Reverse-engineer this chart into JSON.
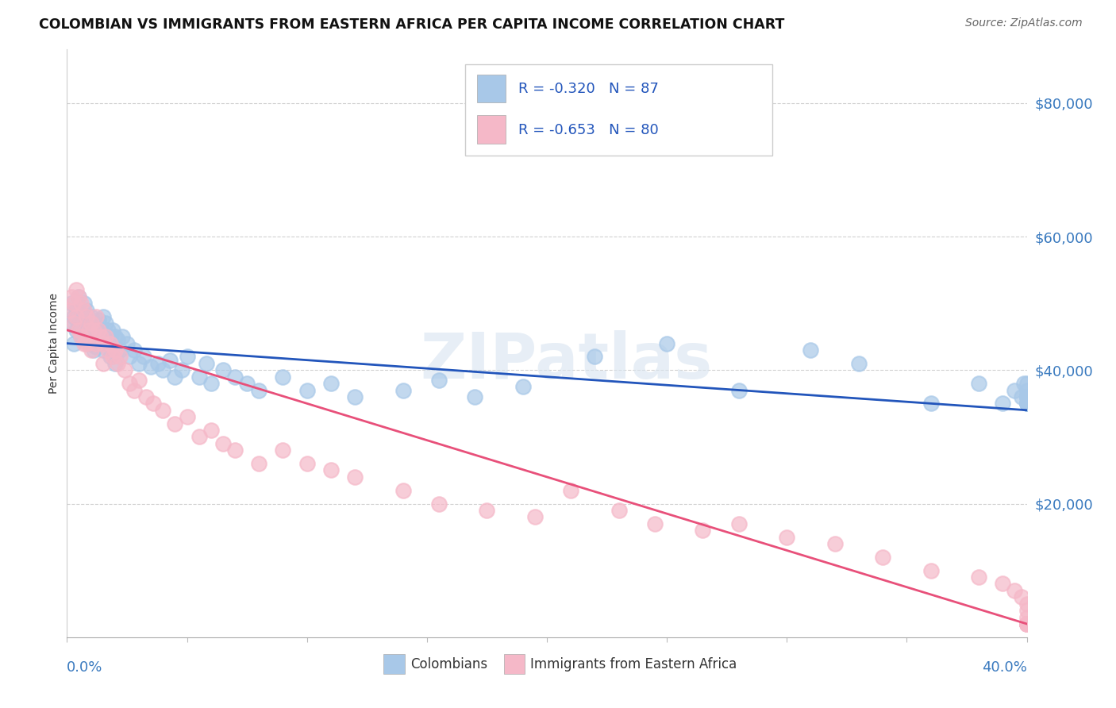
{
  "title": "COLOMBIAN VS IMMIGRANTS FROM EASTERN AFRICA PER CAPITA INCOME CORRELATION CHART",
  "source": "Source: ZipAtlas.com",
  "ylabel": "Per Capita Income",
  "watermark": "ZIPatlas",
  "legend_entries": [
    {
      "R": -0.32,
      "N": 87,
      "color": "#a8c8e8"
    },
    {
      "R": -0.653,
      "N": 80,
      "color": "#f5b8c8"
    }
  ],
  "blue_scatter_color": "#a8c8e8",
  "pink_scatter_color": "#f5b8c8",
  "blue_line_color": "#2255bb",
  "pink_line_color": "#e8507a",
  "ytick_labels": [
    "$20,000",
    "$40,000",
    "$60,000",
    "$80,000"
  ],
  "ytick_values": [
    20000,
    40000,
    60000,
    80000
  ],
  "xlim": [
    0.0,
    0.4
  ],
  "ylim": [
    0,
    88000
  ],
  "blue_line_x0": 0.0,
  "blue_line_y0": 44000,
  "blue_line_x1": 0.4,
  "blue_line_y1": 34000,
  "pink_line_x0": 0.0,
  "pink_line_y0": 46000,
  "pink_line_x1": 0.4,
  "pink_line_y1": 2000,
  "blue_x": [
    0.001,
    0.002,
    0.003,
    0.003,
    0.004,
    0.004,
    0.005,
    0.005,
    0.006,
    0.006,
    0.007,
    0.007,
    0.008,
    0.008,
    0.009,
    0.009,
    0.01,
    0.01,
    0.011,
    0.011,
    0.012,
    0.012,
    0.013,
    0.013,
    0.014,
    0.015,
    0.015,
    0.016,
    0.016,
    0.017,
    0.018,
    0.018,
    0.019,
    0.02,
    0.02,
    0.021,
    0.022,
    0.023,
    0.025,
    0.026,
    0.028,
    0.03,
    0.032,
    0.035,
    0.038,
    0.04,
    0.043,
    0.045,
    0.048,
    0.05,
    0.055,
    0.058,
    0.06,
    0.065,
    0.07,
    0.075,
    0.08,
    0.09,
    0.1,
    0.11,
    0.12,
    0.14,
    0.155,
    0.17,
    0.19,
    0.22,
    0.25,
    0.28,
    0.31,
    0.33,
    0.36,
    0.38,
    0.39,
    0.395,
    0.398,
    0.399,
    0.4,
    0.4,
    0.4,
    0.4,
    0.4,
    0.4,
    0.4,
    0.4,
    0.4,
    0.4,
    0.4
  ],
  "blue_y": [
    47000,
    50000,
    48000,
    44000,
    49000,
    46000,
    51000,
    47000,
    48500,
    45000,
    50000,
    46000,
    49000,
    45000,
    47000,
    44000,
    48000,
    44000,
    47000,
    43000,
    46000,
    43500,
    47500,
    44000,
    46000,
    48000,
    43000,
    47000,
    44000,
    46000,
    45000,
    42000,
    46000,
    45000,
    41000,
    44500,
    43000,
    45000,
    44000,
    42000,
    43000,
    41000,
    42000,
    40500,
    41000,
    40000,
    41500,
    39000,
    40000,
    42000,
    39000,
    41000,
    38000,
    40000,
    39000,
    38000,
    37000,
    39000,
    37000,
    38000,
    36000,
    37000,
    38500,
    36000,
    37500,
    42000,
    44000,
    37000,
    43000,
    41000,
    35000,
    38000,
    35000,
    37000,
    36000,
    38000,
    35000,
    36000,
    37000,
    38000,
    36000,
    35000,
    36000,
    35000,
    36000,
    35000,
    35000
  ],
  "pink_x": [
    0.001,
    0.002,
    0.003,
    0.003,
    0.004,
    0.004,
    0.005,
    0.005,
    0.006,
    0.006,
    0.007,
    0.007,
    0.008,
    0.008,
    0.009,
    0.01,
    0.01,
    0.011,
    0.012,
    0.012,
    0.013,
    0.014,
    0.015,
    0.015,
    0.016,
    0.017,
    0.018,
    0.019,
    0.02,
    0.021,
    0.022,
    0.024,
    0.026,
    0.028,
    0.03,
    0.033,
    0.036,
    0.04,
    0.045,
    0.05,
    0.055,
    0.06,
    0.065,
    0.07,
    0.08,
    0.09,
    0.1,
    0.11,
    0.12,
    0.14,
    0.155,
    0.175,
    0.195,
    0.21,
    0.23,
    0.245,
    0.265,
    0.28,
    0.3,
    0.32,
    0.34,
    0.36,
    0.38,
    0.39,
    0.395,
    0.398,
    0.4,
    0.4,
    0.4,
    0.4,
    0.4,
    0.4,
    0.4,
    0.4,
    0.4,
    0.4,
    0.4,
    0.4,
    0.4,
    0.4
  ],
  "pink_y": [
    49000,
    51000,
    50000,
    47000,
    52000,
    48000,
    51000,
    46000,
    50000,
    45000,
    49000,
    44000,
    48000,
    44000,
    46000,
    47000,
    43000,
    46000,
    48000,
    44000,
    46000,
    45000,
    44000,
    41000,
    45000,
    43000,
    44000,
    42000,
    43000,
    41000,
    42000,
    40000,
    38000,
    37000,
    38500,
    36000,
    35000,
    34000,
    32000,
    33000,
    30000,
    31000,
    29000,
    28000,
    26000,
    28000,
    26000,
    25000,
    24000,
    22000,
    20000,
    19000,
    18000,
    22000,
    19000,
    17000,
    16000,
    17000,
    15000,
    14000,
    12000,
    10000,
    9000,
    8000,
    7000,
    6000,
    5000,
    4000,
    3000,
    2000,
    2000,
    2000,
    2000,
    2000,
    2000,
    2000,
    2000,
    2000,
    2000,
    2000
  ]
}
